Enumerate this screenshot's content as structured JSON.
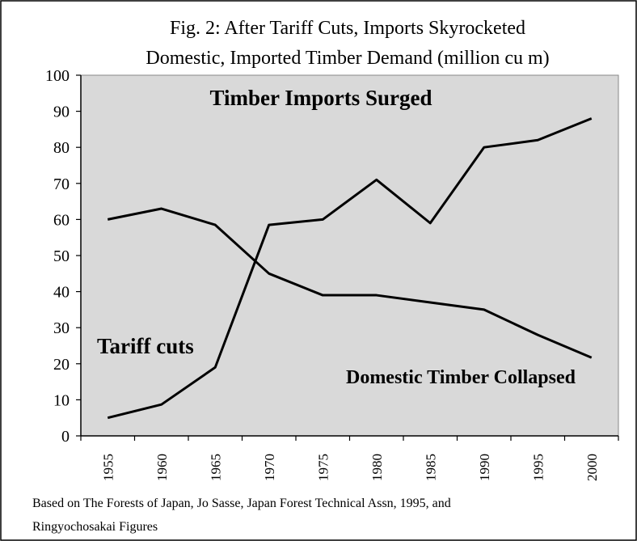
{
  "chart_data": {
    "type": "line",
    "title": "Fig. 2: After Tariff Cuts, Imports Skyrocketed",
    "subtitle": "Domestic, Imported Timber Demand (million cu m)",
    "categories": [
      "1955",
      "1960",
      "1965",
      "1970",
      "1975",
      "1980",
      "1985",
      "1990",
      "1995",
      "2000"
    ],
    "series": [
      {
        "name": "Timber Imports Surged",
        "color": "#000000",
        "values": [
          5,
          8.7,
          19,
          58.5,
          60,
          71,
          59,
          80,
          82,
          88
        ]
      },
      {
        "name": "Domestic Timber Collapsed",
        "color": "#000000",
        "values": [
          60,
          63,
          58.5,
          45,
          39,
          39,
          37,
          35,
          28,
          21.7
        ]
      }
    ],
    "annotations": [
      "Tariff cuts"
    ],
    "source": [
      "Based on The Forests of Japan, Jo Sasse, Japan Forest Technical Assn, 1995, and",
      "Ringyochosakai Figures"
    ],
    "ylim": [
      0,
      100
    ],
    "yticks": [
      0,
      10,
      20,
      30,
      40,
      50,
      60,
      70,
      80,
      90,
      100
    ],
    "plot_background": "#d9d9d9"
  }
}
